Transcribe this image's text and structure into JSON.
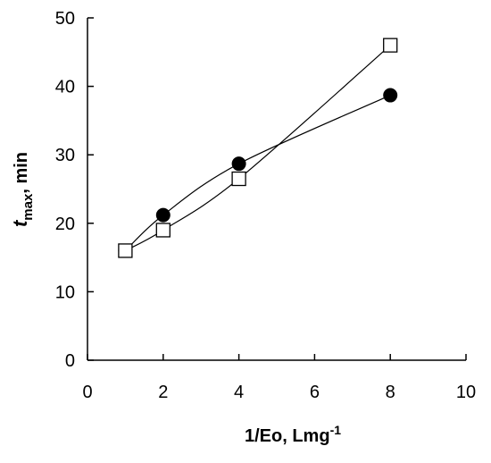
{
  "chart_data": {
    "type": "scatter",
    "title": "",
    "xlabel_main": "1/Eo, Lmg",
    "xlabel_sup": "-1",
    "ylabel_main": "t",
    "ylabel_sub": "max",
    "ylabel_rest": ", min",
    "xlim": [
      0,
      10
    ],
    "ylim": [
      0,
      50
    ],
    "x_ticks": [
      0,
      2,
      4,
      6,
      8,
      10
    ],
    "y_ticks": [
      0,
      10,
      20,
      30,
      40,
      50
    ],
    "grid": false,
    "series": [
      {
        "marker": "filled-circle",
        "color": "#000000",
        "x": [
          1,
          2,
          4,
          8
        ],
        "y": [
          16.0,
          21.2,
          28.7,
          38.7
        ]
      },
      {
        "marker": "open-square",
        "color": "#000000",
        "x": [
          1,
          2,
          4,
          8
        ],
        "y": [
          16.0,
          19.0,
          26.5,
          46.0
        ]
      }
    ]
  }
}
